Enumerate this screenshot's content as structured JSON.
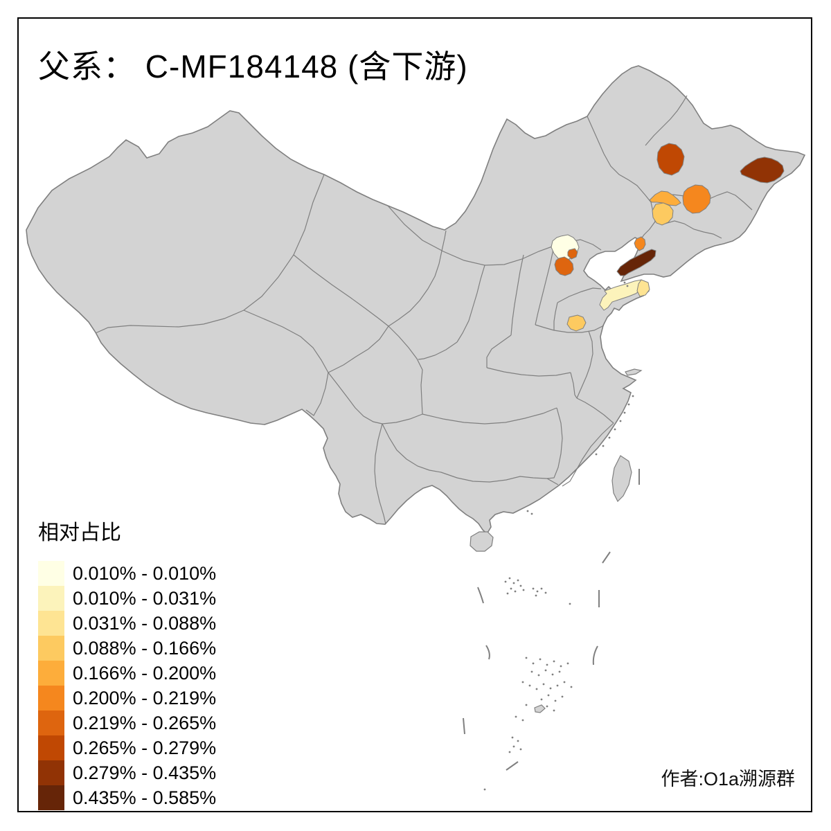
{
  "title": "父系： C-MF184148 (含下游)",
  "credit": "作者:O1a溯源群",
  "legend": {
    "title": "相对占比",
    "items": [
      {
        "range": "0.010% - 0.010%",
        "color": "#FFFFE5"
      },
      {
        "range": "0.010% - 0.031%",
        "color": "#FCF3BB"
      },
      {
        "range": "0.031% - 0.088%",
        "color": "#FEE493"
      },
      {
        "range": "0.088% - 0.166%",
        "color": "#FDCA60"
      },
      {
        "range": "0.166% - 0.200%",
        "color": "#FDAD3B"
      },
      {
        "range": "0.200% - 0.219%",
        "color": "#F5871E"
      },
      {
        "range": "0.219% - 0.265%",
        "color": "#DE650F"
      },
      {
        "range": "0.265% - 0.279%",
        "color": "#C04803"
      },
      {
        "range": "0.279% - 0.435%",
        "color": "#913305"
      },
      {
        "range": "0.435% - 0.585%",
        "color": "#662508"
      }
    ]
  },
  "map": {
    "land_color": "#D3D3D3",
    "boundary_color": "#7F7F7F",
    "sea_color": "#FFFFFF",
    "regions": [
      {
        "id": "beijing-area",
        "category": 1
      },
      {
        "id": "beijing-east-small",
        "category": 7
      },
      {
        "id": "south-of-beijing",
        "category": 7
      },
      {
        "id": "shandong-peninsula-west",
        "category": 2
      },
      {
        "id": "shandong-peninsula-east",
        "category": 3
      },
      {
        "id": "southwest-shandong",
        "category": 4
      },
      {
        "id": "west-heilongjiang",
        "category": 8
      },
      {
        "id": "east-heilongjiang",
        "category": 9
      },
      {
        "id": "central-jilin",
        "category": 6
      },
      {
        "id": "northwest-jilin",
        "category": 5
      },
      {
        "id": "southwest-jilin",
        "category": 4
      },
      {
        "id": "liaoning-coastal-small",
        "category": 6
      },
      {
        "id": "liaodong-peninsula",
        "category": 10
      }
    ]
  },
  "chart_data": {
    "type": "heatmap",
    "subtype": "choropleth-map-of-china-prefectures",
    "title": "父系： C-MF184148 (含下游)",
    "legend_title": "相对占比",
    "legend_position": "bottom-left",
    "breaks": [
      "0.010% - 0.010%",
      "0.010% - 0.031%",
      "0.031% - 0.088%",
      "0.088% - 0.166%",
      "0.166% - 0.200%",
      "0.200% - 0.219%",
      "0.219% - 0.265%",
      "0.265% - 0.279%",
      "0.279% - 0.435%",
      "0.435% - 0.585%"
    ],
    "palette": [
      "#FFFFE5",
      "#FCF3BB",
      "#FEE493",
      "#FDCA60",
      "#FDAD3B",
      "#F5871E",
      "#DE650F",
      "#C04803",
      "#913305",
      "#662508"
    ],
    "series": [
      {
        "name": "beijing-area",
        "bin": "0.010% - 0.010%"
      },
      {
        "name": "shandong-peninsula-west",
        "bin": "0.010% - 0.031%"
      },
      {
        "name": "shandong-peninsula-east",
        "bin": "0.031% - 0.088%"
      },
      {
        "name": "southwest-shandong",
        "bin": "0.088% - 0.166%"
      },
      {
        "name": "southwest-jilin",
        "bin": "0.088% - 0.166%"
      },
      {
        "name": "northwest-jilin",
        "bin": "0.166% - 0.200%"
      },
      {
        "name": "central-jilin",
        "bin": "0.200% - 0.219%"
      },
      {
        "name": "liaoning-coastal-small",
        "bin": "0.200% - 0.219%"
      },
      {
        "name": "beijing-east-small",
        "bin": "0.219% - 0.265%"
      },
      {
        "name": "south-of-beijing",
        "bin": "0.219% - 0.265%"
      },
      {
        "name": "west-heilongjiang",
        "bin": "0.265% - 0.279%"
      },
      {
        "name": "east-heilongjiang",
        "bin": "0.279% - 0.435%"
      },
      {
        "name": "liaodong-peninsula",
        "bin": "0.435% - 0.585%"
      }
    ]
  }
}
